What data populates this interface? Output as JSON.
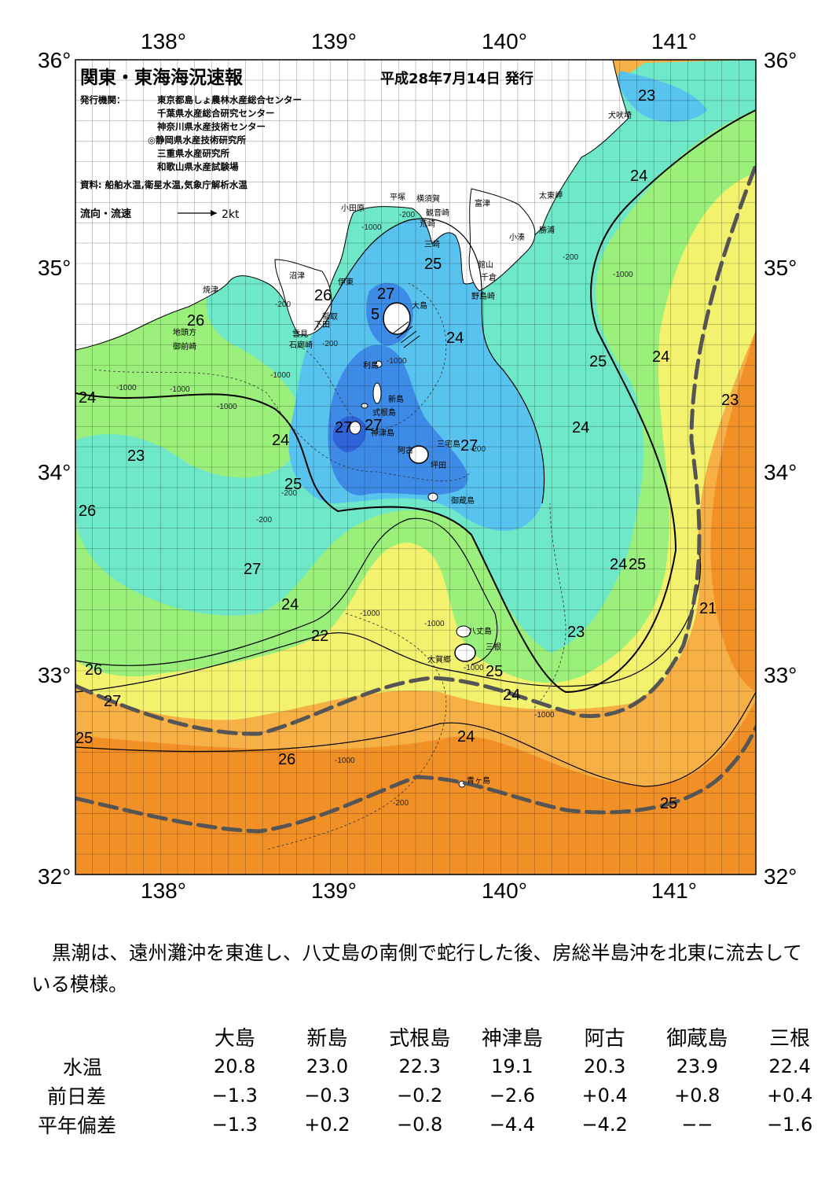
{
  "header": {
    "title": "関東・東海海況速報",
    "issue_date": "平成28年7月14日 発行",
    "agencies_label": "発行機関：",
    "agencies": [
      "東京都島しょ農林水産総合センター",
      "千葉県水産総合研究センター",
      "神奈川県水産技術センター",
      "◎静岡県水産技術研究所",
      "三重県水産研究所",
      "和歌山県水産試験場"
    ],
    "sources": "資料: 船舶水温,衛星水温,気象庁解析水温",
    "current_legend_label": "流向・流速",
    "current_legend_scale": "2kt"
  },
  "axes": {
    "lon_labels": [
      "138°",
      "139°",
      "140°",
      "141°"
    ],
    "lat_labels": [
      "36°",
      "35°",
      "34°",
      "33°",
      "32°"
    ]
  },
  "isotherm_labels": [
    "23",
    "24",
    "25",
    "26",
    "27",
    "5",
    "24",
    "25",
    "24",
    "23",
    "24",
    "24",
    "24",
    "23",
    "25",
    "26",
    "27",
    "24",
    "25",
    "24",
    "21",
    "22",
    "23",
    "25",
    "26",
    "24",
    "27",
    "25",
    "24",
    "26",
    "25",
    "26",
    "27",
    "27",
    "27"
  ],
  "depth_labels": [
    "-200",
    "-1000",
    "-200",
    "-1000",
    "-200",
    "-1000",
    "-200",
    "-1000",
    "-1000",
    "-1000",
    "-1000",
    "-200",
    "-200",
    "-200",
    "-1000",
    "-1000",
    "-1000",
    "-200",
    "-1000",
    "-1000"
  ],
  "places": {
    "inubozaki": "犬吠埼",
    "taitomisaki": "太東岬",
    "katsuura": "勝浦",
    "kominato": "小湊",
    "futtsu": "富津",
    "yokosuka": "横須賀",
    "hiratsuka": "平塚",
    "odawara": "小田原",
    "kannonzaki": "観音崎",
    "arasaki": "荒崎",
    "misaki": "三崎",
    "tateyama": "館山",
    "chikura": "千倉",
    "nojimazaki": "野島崎",
    "numazu": "沼津",
    "ito": "伊東",
    "yaizu": "焼津",
    "inatori": "稲取",
    "shimoda": "下田",
    "kumomi": "雲見",
    "irozaki": "石廊崎",
    "jitokata": "地頭方",
    "omaezaki": "御前崎",
    "oshima": "大島",
    "toshima": "利島",
    "niijima": "新島",
    "shikinejima": "式根島",
    "kozushima": "神津島",
    "miyakejima": "三宅島",
    "ako": "阿古",
    "tsubota": "坪田",
    "mikurajima": "御蔵島",
    "hachijojima": "八丈島",
    "mitsune": "三根",
    "okago": "大賀郷",
    "aogashima": "青ヶ島"
  },
  "summary": "黒潮は、遠州灘沖を東進し、八丈島の南側で蛇行した後、房総半島沖を北東に流去している模様。",
  "observations": {
    "stations": [
      "大島",
      "新島",
      "式根島",
      "神津島",
      "阿古",
      "御蔵島",
      "三根"
    ],
    "rows": [
      {
        "label": "水温",
        "values": [
          "20.8",
          "23.0",
          "22.3",
          "19.1",
          "20.3",
          "23.9",
          "22.4"
        ]
      },
      {
        "label": "前日差",
        "values": [
          "−1.3",
          "−0.3",
          "−0.2",
          "−2.6",
          "+0.4",
          "+0.8",
          "+0.4"
        ]
      },
      {
        "label": "平年偏差",
        "values": [
          "−1.3",
          "+0.2",
          "−0.8",
          "−4.4",
          "−4.2",
          "−−",
          "−1.6"
        ]
      }
    ]
  },
  "colors": {
    "c21": "#2f64d8",
    "c22": "#3d8be6",
    "c23": "#58c3ee",
    "c24": "#6ee8c8",
    "c25": "#9af07a",
    "c26": "#f2f26e",
    "c27": "#f7b046",
    "c28": "#f29028",
    "land": "#ffffff",
    "kuroshio_axis": "#555555"
  }
}
